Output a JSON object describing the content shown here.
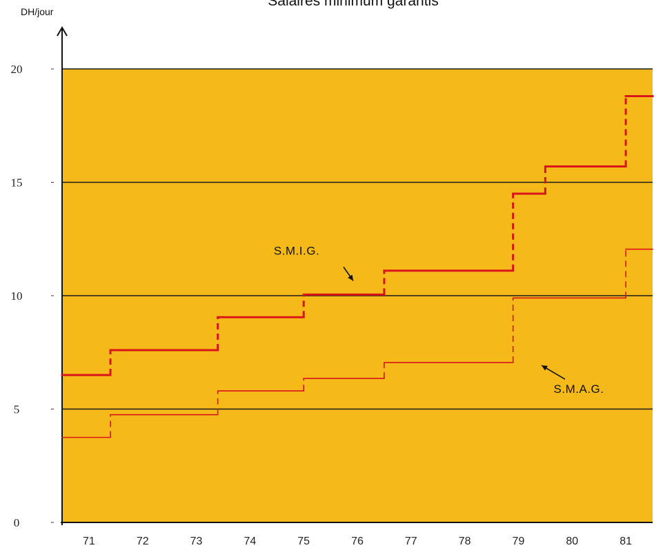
{
  "chart_data": {
    "type": "line",
    "title": "Salaires minimum garantis",
    "ylabel": "DH/jour",
    "xlabel": "",
    "ylim": [
      0,
      20
    ],
    "xlim": [
      70.5,
      81.5
    ],
    "yticks": [
      0,
      5,
      10,
      15,
      20
    ],
    "xticks": [
      "71",
      "72",
      "73",
      "74",
      "75",
      "76",
      "77",
      "78",
      "79",
      "80",
      "81"
    ],
    "grid": true,
    "background": "#F5BA1A",
    "series": [
      {
        "name": "S.M.I.G.",
        "color": "#D9141B",
        "steps": [
          [
            70.5,
            6.5
          ],
          [
            71.4,
            7.6
          ],
          [
            73.4,
            9.05
          ],
          [
            75.0,
            10.05
          ],
          [
            76.5,
            11.1
          ],
          [
            78.9,
            14.5
          ],
          [
            79.5,
            15.7
          ],
          [
            81.0,
            18.8
          ]
        ],
        "end": 81.5
      },
      {
        "name": "S.M.A.G.",
        "color": "#D9141B",
        "steps": [
          [
            70.5,
            3.75
          ],
          [
            71.4,
            4.75
          ],
          [
            73.4,
            5.8
          ],
          [
            75.0,
            6.35
          ],
          [
            76.5,
            7.05
          ],
          [
            78.9,
            9.9
          ],
          [
            81.0,
            12.05
          ]
        ],
        "end": 81.5
      }
    ],
    "annotations": [
      {
        "text": "S.M.I.G.",
        "series": 0
      },
      {
        "text": "S.M.A.G.",
        "series": 1
      }
    ]
  }
}
